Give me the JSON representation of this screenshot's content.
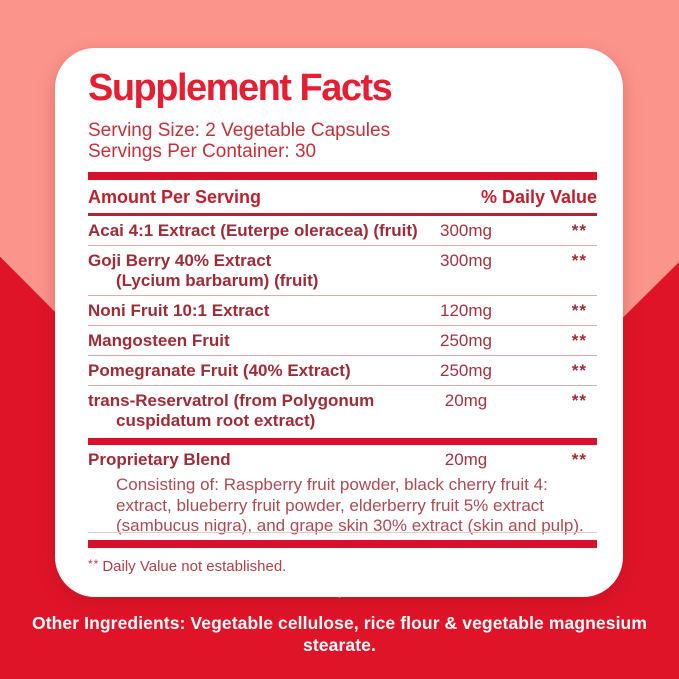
{
  "colors": {
    "background_red": "#DF1428",
    "background_pink": "#FB958C",
    "panel_white": "#FFFFFF",
    "title_red": "#E41E33",
    "bar_red": "#D6122D",
    "row_text_red": "#9E2C37"
  },
  "panel": {
    "title": "Supplement Facts",
    "serving_size": "Serving Size: 2 Vegetable Capsules",
    "servings_per_container": "Servings Per Container: 30",
    "columns": {
      "left": "Amount Per Serving",
      "right": "% Daily Value"
    },
    "rows": [
      {
        "name": "Acai 4:1 Extract (Euterpe oleracea) (fruit)",
        "amount": "300mg",
        "dv": "**"
      },
      {
        "name": "Goji Berry 40% Extract",
        "name2": "(Lycium barbarum) (fruit)",
        "amount": "300mg",
        "dv": "**"
      },
      {
        "name": "Noni Fruit 10:1 Extract",
        "amount": "120mg",
        "dv": "**"
      },
      {
        "name": "Mangosteen Fruit",
        "amount": "250mg",
        "dv": "**"
      },
      {
        "name": "Pomegranate Fruit (40% Extract)",
        "amount": "250mg",
        "dv": "**"
      },
      {
        "name": "trans-Reservatrol (from Polygonum",
        "name2": "cuspidatum root extract)",
        "amount": "20mg",
        "dv": "**"
      },
      {
        "name": "Proprietary Blend",
        "amount": "20mg",
        "dv": "**",
        "description": "Consisting of: Raspberry fruit powder, black cherry fruit 4: extract, blueberry fruit powder, elderberry fruit 5% extract (sambucus nigra), and grape skin 30% extract (skin and pulp)."
      }
    ],
    "footnote_stars": "**",
    "footnote_text": "Daily Value not established."
  },
  "bottom": {
    "other_ingredients_label": "Other Ingredients:",
    "other_ingredients_text": " Vegetable cellulose, rice flour & vegetable magnesium stearate."
  }
}
